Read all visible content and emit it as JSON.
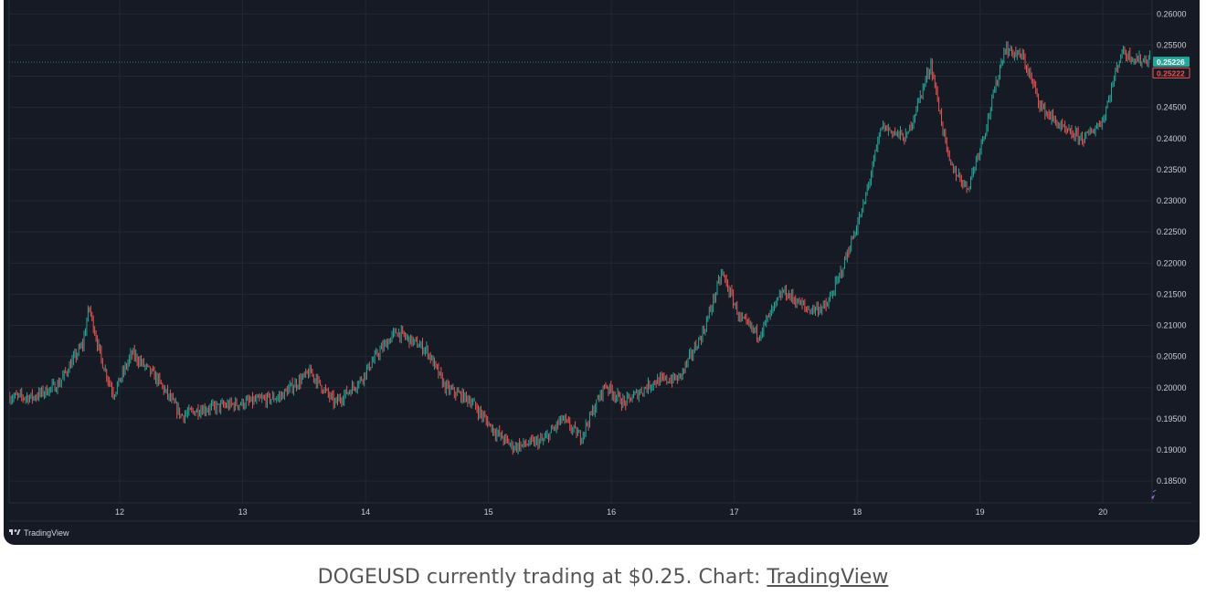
{
  "chart_data": {
    "type": "candlestick",
    "symbol": "DOGEUSD",
    "x_ticks": [
      "12",
      "13",
      "14",
      "15",
      "16",
      "17",
      "18",
      "19",
      "20"
    ],
    "y_ticks": [
      "0.26000",
      "0.25500",
      "0.24500",
      "0.24000",
      "0.23500",
      "0.23000",
      "0.22500",
      "0.22000",
      "0.21500",
      "0.21000",
      "0.20500",
      "0.20000",
      "0.19500",
      "0.19000",
      "0.18500"
    ],
    "ylim": [
      0.1815,
      0.264
    ],
    "last_price": "0.25226",
    "bid_price": "0.25222",
    "approx_path": [
      [
        11.3,
        0.1985
      ],
      [
        11.5,
        0.2005
      ],
      [
        11.7,
        0.207
      ],
      [
        11.75,
        0.213
      ],
      [
        11.85,
        0.2045
      ],
      [
        11.95,
        0.199
      ],
      [
        12.1,
        0.2055
      ],
      [
        12.3,
        0.2015
      ],
      [
        12.5,
        0.1955
      ],
      [
        12.65,
        0.1965
      ],
      [
        13.0,
        0.1975
      ],
      [
        13.3,
        0.1985
      ],
      [
        13.55,
        0.2025
      ],
      [
        13.75,
        0.1975
      ],
      [
        13.95,
        0.201
      ],
      [
        14.1,
        0.2055
      ],
      [
        14.25,
        0.209
      ],
      [
        14.5,
        0.206
      ],
      [
        14.65,
        0.2
      ],
      [
        14.85,
        0.198
      ],
      [
        15.05,
        0.193
      ],
      [
        15.2,
        0.1905
      ],
      [
        15.45,
        0.1915
      ],
      [
        15.6,
        0.195
      ],
      [
        15.75,
        0.192
      ],
      [
        15.95,
        0.2005
      ],
      [
        16.1,
        0.1975
      ],
      [
        16.35,
        0.201
      ],
      [
        16.55,
        0.2015
      ],
      [
        16.75,
        0.209
      ],
      [
        16.9,
        0.2185
      ],
      [
        17.05,
        0.211
      ],
      [
        17.2,
        0.2085
      ],
      [
        17.4,
        0.2155
      ],
      [
        17.6,
        0.2125
      ],
      [
        17.75,
        0.213
      ],
      [
        17.85,
        0.2175
      ],
      [
        18.05,
        0.229
      ],
      [
        18.2,
        0.242
      ],
      [
        18.4,
        0.24
      ],
      [
        18.6,
        0.252
      ],
      [
        18.75,
        0.236
      ],
      [
        18.9,
        0.232
      ],
      [
        19.05,
        0.242
      ],
      [
        19.2,
        0.2545
      ],
      [
        19.35,
        0.253
      ],
      [
        19.5,
        0.245
      ],
      [
        19.7,
        0.241
      ],
      [
        19.85,
        0.24
      ],
      [
        20.0,
        0.243
      ],
      [
        20.15,
        0.254
      ],
      [
        20.3,
        0.2525
      ],
      [
        20.45,
        0.2532
      ]
    ]
  },
  "brand": {
    "name": "TradingView"
  },
  "caption": {
    "text": "DOGEUSD currently trading at $0.25. Chart: ",
    "link": "TradingView"
  },
  "colors": {
    "up": "#26a69a",
    "down": "#ef5350",
    "bg": "#161a25",
    "grid": "#232733",
    "last_tag": "#26a69a",
    "bid_tag": "#ef5350"
  }
}
